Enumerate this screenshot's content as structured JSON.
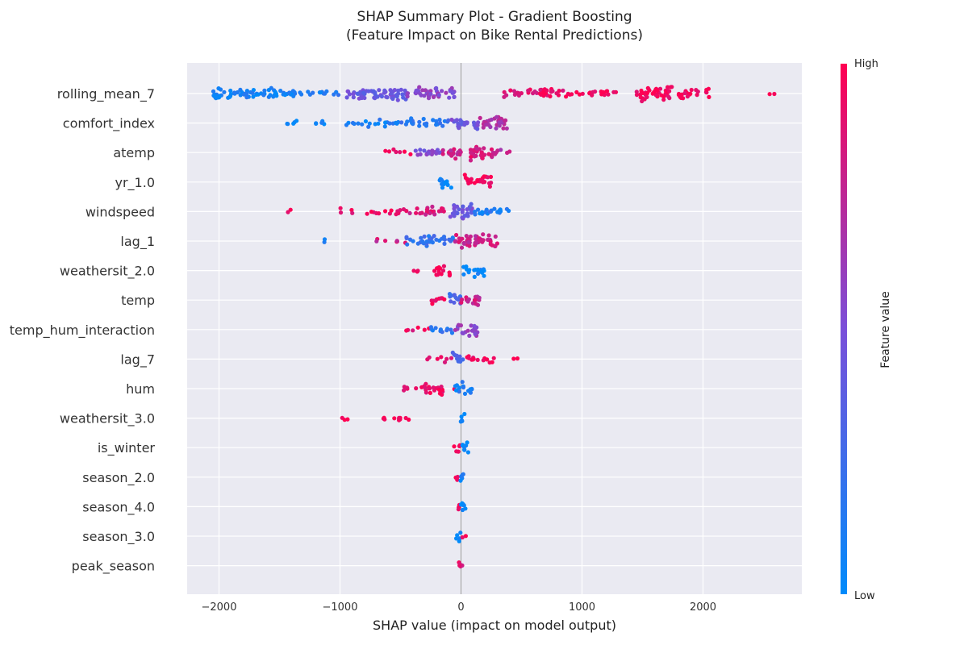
{
  "chart_data": {
    "type": "scatter",
    "subtype": "shap-beeswarm",
    "title": "SHAP Summary Plot - Gradient Boosting",
    "subtitle": "(Feature Impact on Bike Rental Predictions)",
    "xlabel": "SHAP value (impact on model output)",
    "xlim": [
      -2270,
      2830
    ],
    "xticks": [
      -2000,
      -1000,
      0,
      1000,
      2000
    ],
    "xtick_labels": [
      "−2000",
      "−1000",
      "0",
      "1000",
      "2000"
    ],
    "grid": true,
    "colorbar": {
      "label": "Feature value",
      "high_label": "High",
      "low_label": "Low",
      "low_color": "#008bfb",
      "high_color": "#ff0052"
    },
    "features": [
      {
        "name": "rolling_mean_7",
        "min": -2050,
        "max": 2600,
        "segments": [
          [
            -2050,
            -1900,
            0.05,
            1.0
          ],
          [
            -1900,
            -1300,
            0.08,
            0.6
          ],
          [
            -1300,
            -1000,
            0.12,
            0.3
          ],
          [
            -950,
            -450,
            0.42,
            0.9
          ],
          [
            -450,
            -50,
            0.55,
            0.8
          ],
          [
            350,
            650,
            0.9,
            0.4
          ],
          [
            650,
            850,
            0.93,
            0.7
          ],
          [
            850,
            1300,
            0.95,
            0.35
          ],
          [
            1450,
            1750,
            0.97,
            1.0
          ],
          [
            1750,
            2050,
            0.97,
            0.6
          ],
          [
            2550,
            2600,
            1.0,
            0.1
          ]
        ]
      },
      {
        "name": "comfort_index",
        "min": -1500,
        "max": 380,
        "segments": [
          [
            -1500,
            -1000,
            0.05,
            0.15
          ],
          [
            -1000,
            -500,
            0.1,
            0.3
          ],
          [
            -500,
            -100,
            0.2,
            0.5
          ],
          [
            -100,
            150,
            0.45,
            0.8
          ],
          [
            150,
            380,
            0.7,
            1.0
          ]
        ]
      },
      {
        "name": "atemp",
        "min": -650,
        "max": 420,
        "segments": [
          [
            -650,
            -400,
            0.95,
            0.2
          ],
          [
            -400,
            -150,
            0.5,
            0.5
          ],
          [
            -150,
            50,
            0.8,
            0.7
          ],
          [
            50,
            280,
            0.85,
            1.0
          ],
          [
            280,
            420,
            0.75,
            0.3
          ]
        ]
      },
      {
        "name": "yr_1.0",
        "min": -180,
        "max": 250,
        "segments": [
          [
            -180,
            -60,
            0.03,
            0.8
          ],
          [
            30,
            250,
            0.97,
            0.8
          ]
        ]
      },
      {
        "name": "windspeed",
        "min": -1430,
        "max": 400,
        "segments": [
          [
            -1430,
            -1400,
            0.95,
            0.1
          ],
          [
            -1000,
            -550,
            0.92,
            0.2
          ],
          [
            -550,
            -100,
            0.85,
            0.5
          ],
          [
            -100,
            100,
            0.45,
            1.0
          ],
          [
            100,
            400,
            0.12,
            0.5
          ]
        ]
      },
      {
        "name": "lag_1",
        "min": -1130,
        "max": 300,
        "segments": [
          [
            -1130,
            -1100,
            0.05,
            0.1
          ],
          [
            -720,
            -450,
            0.8,
            0.2
          ],
          [
            -450,
            -50,
            0.2,
            0.6
          ],
          [
            -50,
            300,
            0.8,
            1.0
          ]
        ]
      },
      {
        "name": "weathersit_2.0",
        "min": -400,
        "max": 200,
        "segments": [
          [
            -400,
            -330,
            0.97,
            0.3
          ],
          [
            -220,
            -80,
            0.97,
            0.7
          ],
          [
            20,
            200,
            0.03,
            0.8
          ]
        ]
      },
      {
        "name": "temp",
        "min": -340,
        "max": 160,
        "segments": [
          [
            -340,
            -120,
            0.92,
            0.3
          ],
          [
            -120,
            0,
            0.3,
            0.8
          ],
          [
            0,
            160,
            0.8,
            0.7
          ]
        ]
      },
      {
        "name": "temp_hum_interaction",
        "min": -460,
        "max": 140,
        "segments": [
          [
            -460,
            -250,
            0.92,
            0.2
          ],
          [
            -250,
            -50,
            0.15,
            0.4
          ],
          [
            -50,
            140,
            0.6,
            0.8
          ]
        ]
      },
      {
        "name": "lag_7",
        "min": -320,
        "max": 500,
        "segments": [
          [
            -320,
            -70,
            0.9,
            0.2
          ],
          [
            -70,
            30,
            0.3,
            0.9
          ],
          [
            30,
            280,
            0.95,
            0.4
          ],
          [
            420,
            500,
            1.0,
            0.1
          ]
        ]
      },
      {
        "name": "hum",
        "min": -520,
        "max": 90,
        "segments": [
          [
            -520,
            -330,
            0.9,
            0.2
          ],
          [
            -330,
            -50,
            0.95,
            0.6
          ],
          [
            -50,
            90,
            0.1,
            0.9
          ]
        ]
      },
      {
        "name": "weathersit_3.0",
        "min": -1000,
        "max": 30,
        "segments": [
          [
            -1000,
            -900,
            1.0,
            0.2
          ],
          [
            -750,
            -350,
            1.0,
            0.2
          ],
          [
            -10,
            30,
            0.05,
            1.0
          ]
        ]
      },
      {
        "name": "is_winter",
        "min": -60,
        "max": 60,
        "segments": [
          [
            -60,
            -10,
            1.0,
            0.7
          ],
          [
            -10,
            60,
            0.05,
            0.8
          ]
        ]
      },
      {
        "name": "season_2.0",
        "min": -60,
        "max": 30,
        "segments": [
          [
            -60,
            -10,
            1.0,
            0.5
          ],
          [
            -10,
            30,
            0.05,
            1.0
          ]
        ]
      },
      {
        "name": "season_4.0",
        "min": -50,
        "max": 40,
        "segments": [
          [
            -50,
            -10,
            1.0,
            0.5
          ],
          [
            -10,
            40,
            0.05,
            1.0
          ]
        ]
      },
      {
        "name": "season_3.0",
        "min": -40,
        "max": 40,
        "segments": [
          [
            -40,
            0,
            0.05,
            1.0
          ],
          [
            0,
            40,
            1.0,
            0.4
          ]
        ]
      },
      {
        "name": "peak_season",
        "min": -20,
        "max": 20,
        "segments": [
          [
            -20,
            20,
            0.9,
            1.0
          ]
        ]
      }
    ]
  }
}
